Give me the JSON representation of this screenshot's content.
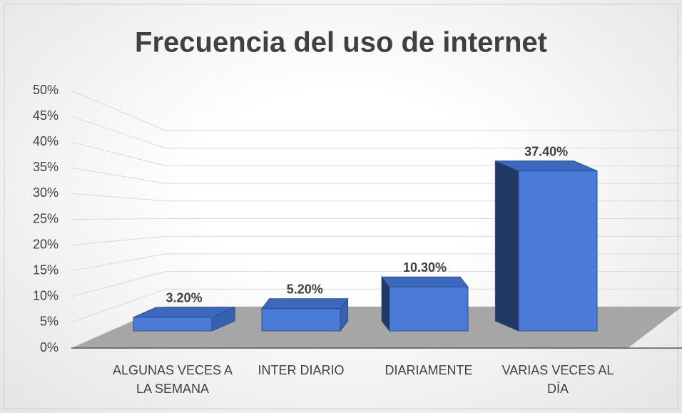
{
  "chart_data": {
    "type": "bar3d",
    "title": "Frecuencia del uso de internet",
    "categories": [
      "ALGUNAS VECES A LA SEMANA",
      "INTER DIARIO",
      "DIARIAMENTE",
      "VARIAS VECES AL DÍA"
    ],
    "values": [
      3.2,
      5.2,
      10.3,
      37.4
    ],
    "value_labels": [
      "3.20%",
      "5.20%",
      "10.30%",
      "37.40%"
    ],
    "color": "#4a7bd6",
    "ylim": [
      0,
      50
    ],
    "yticks": [
      {
        "value": 0,
        "label": "0%"
      },
      {
        "value": 5,
        "label": "5%"
      },
      {
        "value": 10,
        "label": "10%"
      },
      {
        "value": 15,
        "label": "15%"
      },
      {
        "value": 20,
        "label": "20%"
      },
      {
        "value": 25,
        "label": "25%"
      },
      {
        "value": 30,
        "label": "30%"
      },
      {
        "value": 35,
        "label": "35%"
      },
      {
        "value": 40,
        "label": "40%"
      },
      {
        "value": 45,
        "label": "45%"
      },
      {
        "value": 50,
        "label": "50%"
      }
    ],
    "grid": true
  }
}
